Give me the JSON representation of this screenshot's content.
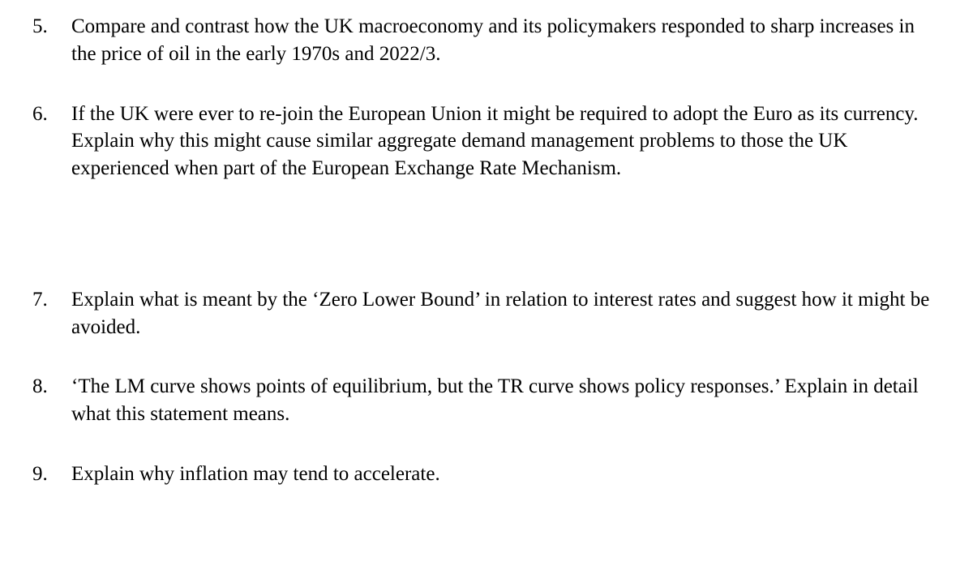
{
  "text_color": "#000000",
  "background_color": "#ffffff",
  "font_family": "Times New Roman",
  "font_size_pt": 19,
  "questions": [
    {
      "number": "5.",
      "text": "Compare and contrast how the UK macroeconomy and its policymakers responded to sharp increases in the price of oil in the early 1970s and 2022/3."
    },
    {
      "number": "6.",
      "text": "If the UK were ever to re-join the European Union it might be required to adopt the Euro as its currency. Explain why this might cause similar aggregate demand management problems to those the UK experienced when part of the European Exchange Rate Mechanism."
    },
    {
      "number": "7.",
      "text": "Explain what is meant by the ‘Zero Lower Bound’ in relation to interest rates and suggest how it might be avoided."
    },
    {
      "number": "8.",
      "text": "‘The LM curve shows points of equilibrium, but the TR curve shows policy responses.’ Explain in detail what this statement means."
    },
    {
      "number": "9.",
      "text": "Explain why inflation may tend to accelerate."
    }
  ]
}
